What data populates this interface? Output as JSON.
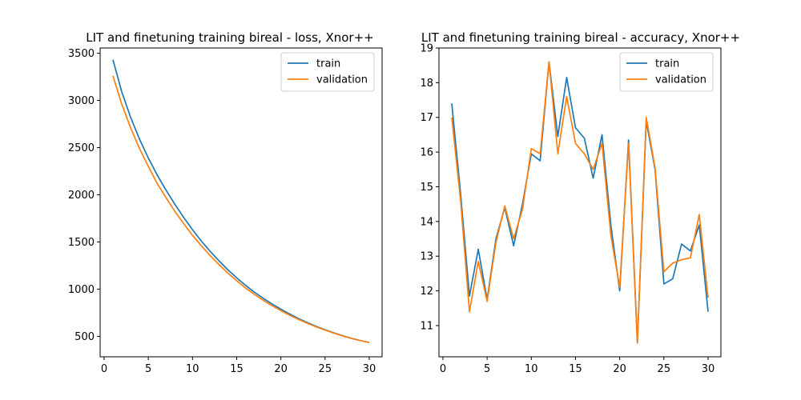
{
  "chart_data": [
    {
      "type": "line",
      "title": "LIT and finetuning training bireal - loss, Xnor++",
      "xlim": [
        -0.45,
        31.45
      ],
      "ylim": [
        283,
        3555
      ],
      "xticks": [
        0,
        5,
        10,
        15,
        20,
        25,
        30
      ],
      "yticks": [
        500,
        1000,
        1500,
        2000,
        2500,
        3000,
        3500
      ],
      "legend_position": "top-right",
      "x": [
        1,
        2,
        3,
        4,
        5,
        6,
        7,
        8,
        9,
        10,
        11,
        12,
        13,
        14,
        15,
        16,
        17,
        18,
        19,
        20,
        21,
        22,
        23,
        24,
        25,
        26,
        27,
        28,
        29,
        30
      ],
      "series": [
        {
          "name": "train",
          "color": "#1f77b4",
          "values": [
            3430,
            3090,
            2820,
            2590,
            2390,
            2210,
            2050,
            1900,
            1760,
            1630,
            1510,
            1400,
            1300,
            1205,
            1120,
            1040,
            968,
            903,
            843,
            787,
            736,
            688,
            645,
            605,
            570,
            537,
            506,
            478,
            455,
            435
          ]
        },
        {
          "name": "validation",
          "color": "#ff7f0e",
          "values": [
            3260,
            2960,
            2710,
            2490,
            2300,
            2120,
            1970,
            1825,
            1695,
            1570,
            1460,
            1355,
            1260,
            1170,
            1090,
            1012,
            945,
            882,
            825,
            772,
            724,
            679,
            638,
            600,
            566,
            534,
            504,
            477,
            455,
            434
          ]
        }
      ]
    },
    {
      "type": "line",
      "title": "LIT and finetuning training bireal - accuracy, Xnor++",
      "xlim": [
        -0.45,
        31.45
      ],
      "ylim": [
        10.1,
        19.0
      ],
      "xticks": [
        0,
        5,
        10,
        15,
        20,
        25,
        30
      ],
      "yticks": [
        11,
        12,
        13,
        14,
        15,
        16,
        17,
        18,
        19
      ],
      "legend_position": "top-right",
      "x": [
        1,
        2,
        3,
        4,
        5,
        6,
        7,
        8,
        9,
        10,
        11,
        12,
        13,
        14,
        15,
        16,
        17,
        18,
        19,
        20,
        21,
        22,
        23,
        24,
        25,
        26,
        27,
        28,
        29,
        30
      ],
      "series": [
        {
          "name": "train",
          "color": "#1f77b4",
          "values": [
            17.4,
            14.8,
            11.85,
            13.2,
            11.75,
            13.5,
            14.4,
            13.3,
            14.5,
            15.95,
            15.75,
            18.6,
            16.45,
            18.15,
            16.7,
            16.4,
            15.25,
            16.5,
            13.9,
            12.0,
            16.35,
            10.5,
            16.9,
            15.5,
            12.2,
            12.35,
            13.35,
            13.15,
            13.9,
            11.4
          ]
        },
        {
          "name": "validation",
          "color": "#ff7f0e",
          "values": [
            17.0,
            14.6,
            11.4,
            12.85,
            11.7,
            13.4,
            14.45,
            13.5,
            14.35,
            16.1,
            15.95,
            18.6,
            15.95,
            17.6,
            16.25,
            15.95,
            15.5,
            16.25,
            13.6,
            12.1,
            16.25,
            10.5,
            17.0,
            15.55,
            12.55,
            12.8,
            12.9,
            12.95,
            14.2,
            11.8
          ]
        }
      ]
    }
  ]
}
